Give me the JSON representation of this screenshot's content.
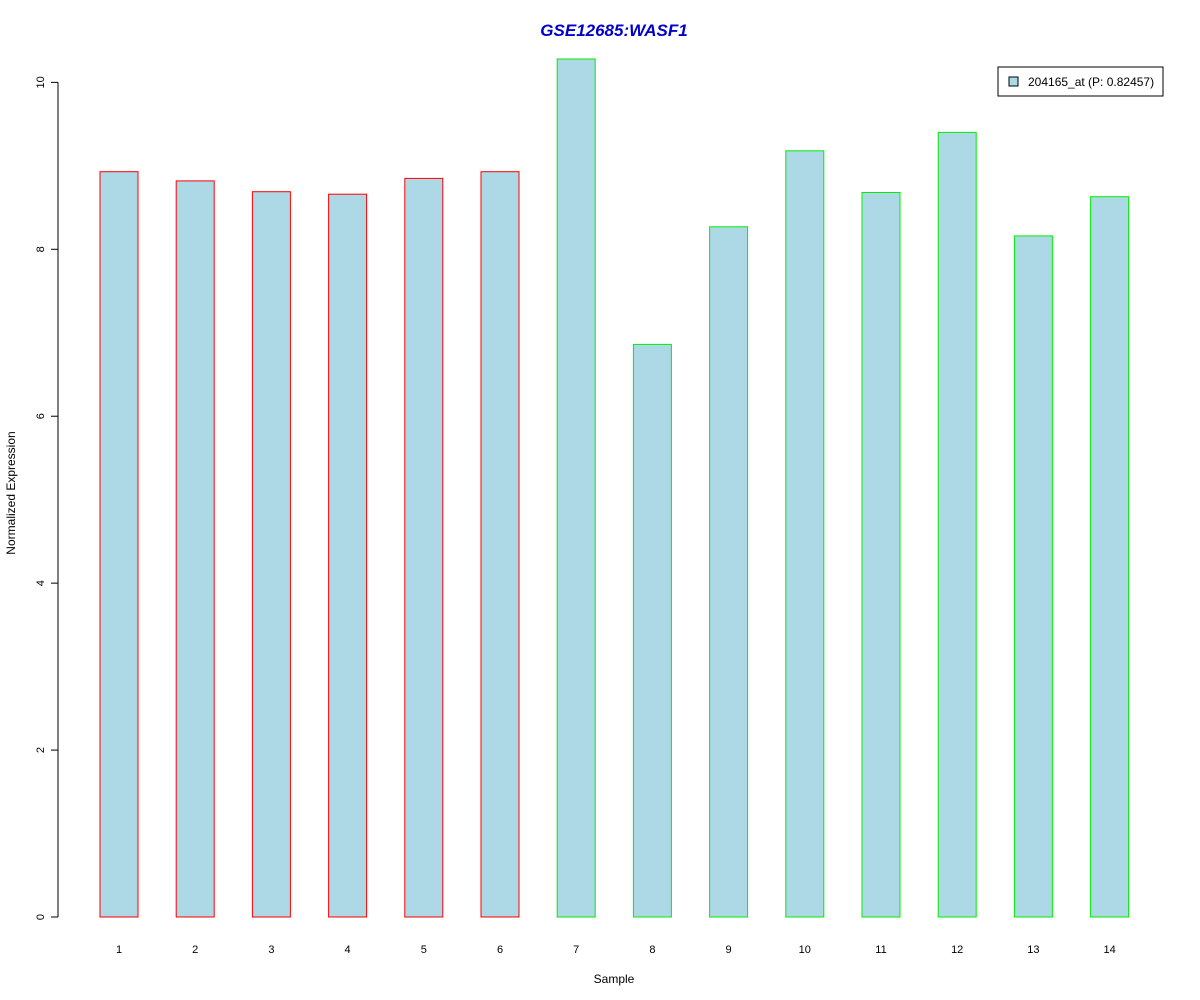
{
  "chart_data": {
    "type": "bar",
    "title": "GSE12685:WASF1",
    "xlabel": "Sample",
    "ylabel": "Normalized Expression",
    "categories": [
      "1",
      "2",
      "3",
      "4",
      "5",
      "6",
      "7",
      "8",
      "9",
      "10",
      "11",
      "12",
      "13",
      "14"
    ],
    "values": [
      8.93,
      8.82,
      8.69,
      8.66,
      8.85,
      8.93,
      10.28,
      6.86,
      8.27,
      9.18,
      8.68,
      9.4,
      8.16,
      8.63
    ],
    "bar_border_colors": [
      "#ff0000",
      "#ff0000",
      "#ff0000",
      "#ff0000",
      "#ff0000",
      "#ff0000",
      "#00ee00",
      "#00ee00",
      "#00ee00",
      "#00ee00",
      "#00ee00",
      "#00ee00",
      "#00ee00",
      "#00ee00"
    ],
    "bar_fill_color": "#add8e6",
    "title_color": "#0000cd",
    "yticks": [
      "0",
      "2",
      "4",
      "6",
      "8",
      "10"
    ],
    "ylim": [
      0,
      10.28
    ],
    "grid": false,
    "legend": {
      "placement": "top-right",
      "entries": [
        {
          "label": "204165_at (P: 0.82457)",
          "color": "#add8e6"
        }
      ]
    }
  }
}
